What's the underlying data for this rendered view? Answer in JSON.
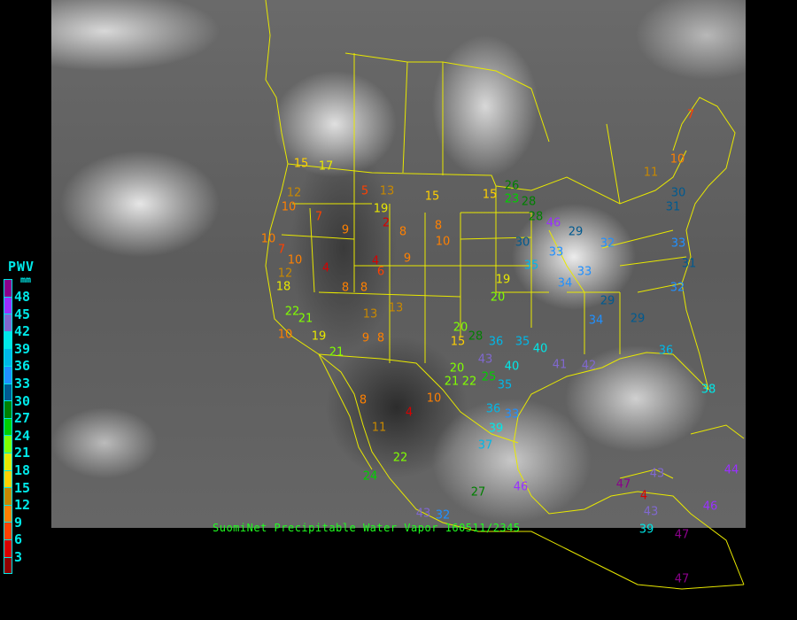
{
  "caption": "SuomiNet Precipitable Water Vapor 160511/2345",
  "legend": {
    "title": "PWV",
    "unit": "mm",
    "labels": [
      "48",
      "45",
      "42",
      "39",
      "36",
      "33",
      "30",
      "27",
      "24",
      "21",
      "18",
      "15",
      "12",
      "9",
      "6",
      "3"
    ],
    "colors": [
      "#8b008b",
      "#9a30ff",
      "#8068d0",
      "#00e8e8",
      "#00b8e8",
      "#2090ff",
      "#005a90",
      "#008000",
      "#00d000",
      "#80ff00",
      "#e8e800",
      "#ffd000",
      "#c88800",
      "#ff8000",
      "#ff4000",
      "#d80000",
      "#900000"
    ]
  },
  "boundary_color": "#e8e800",
  "stations": [
    "10",
    "7",
    "10",
    "12",
    "18",
    "22",
    "21",
    "10",
    "19",
    "21",
    "12",
    "10",
    "17",
    "15",
    "13",
    "5",
    "19",
    "2",
    "7",
    "9",
    "4",
    "4",
    "8",
    "8",
    "6",
    "13",
    "8",
    "9",
    "4",
    "11",
    "22",
    "24",
    "8",
    "10",
    "9",
    "8",
    "8",
    "10",
    "15",
    "15",
    "23",
    "26",
    "28",
    "28",
    "30",
    "33",
    "32",
    "33",
    "35",
    "34",
    "19",
    "20",
    "20",
    "15",
    "28",
    "36",
    "35",
    "40",
    "43",
    "35",
    "21",
    "22",
    "20",
    "25",
    "36",
    "33",
    "39",
    "37",
    "27",
    "32",
    "43",
    "46",
    "47",
    "43",
    "43",
    "46",
    "44",
    "4",
    "39",
    "47",
    "47",
    "36",
    "38",
    "33",
    "31",
    "30",
    "31",
    "32",
    "29",
    "29",
    "34",
    "11",
    "10",
    "7",
    "46",
    "29",
    "40",
    "41",
    "42",
    "13"
  ]
}
